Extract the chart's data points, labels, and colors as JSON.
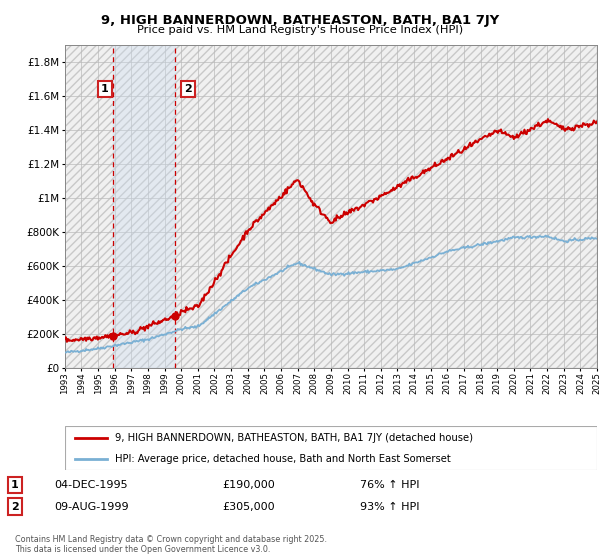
{
  "title": "9, HIGH BANNERDOWN, BATHEASTON, BATH, BA1 7JY",
  "subtitle": "Price paid vs. HM Land Registry's House Price Index (HPI)",
  "legend_line1": "9, HIGH BANNERDOWN, BATHEASTON, BATH, BA1 7JY (detached house)",
  "legend_line2": "HPI: Average price, detached house, Bath and North East Somerset",
  "annotation1_date": "04-DEC-1995",
  "annotation1_price": "£190,000",
  "annotation1_hpi": "76% ↑ HPI",
  "annotation2_date": "09-AUG-1999",
  "annotation2_price": "£305,000",
  "annotation2_hpi": "93% ↑ HPI",
  "footer": "Contains HM Land Registry data © Crown copyright and database right 2025.\nThis data is licensed under the Open Government Licence v3.0.",
  "sale1_year": 1995.92,
  "sale1_price": 190000,
  "sale2_year": 1999.6,
  "sale2_price": 305000,
  "red_line_color": "#cc0000",
  "blue_line_color": "#7ab0d4",
  "plot_bg_color": "#ffffff",
  "shade_color": "#ddeeff",
  "ylim_min": 0,
  "ylim_max": 1900000,
  "xmin": 1993,
  "xmax": 2025
}
